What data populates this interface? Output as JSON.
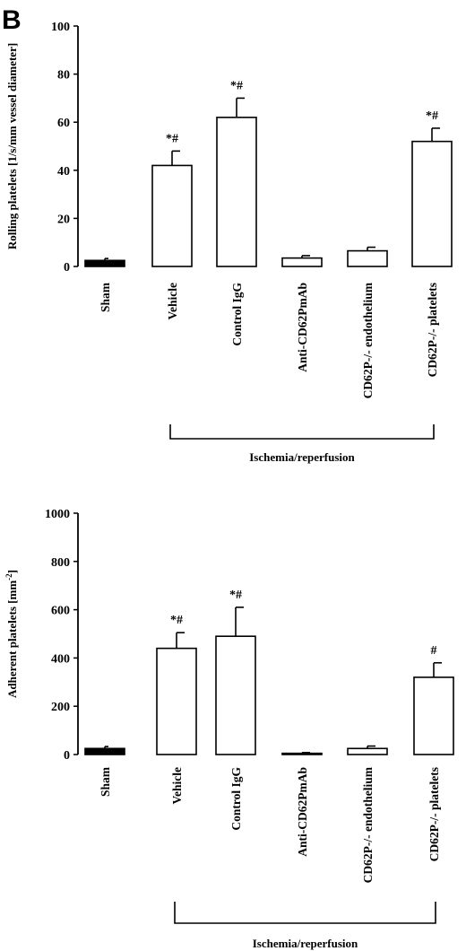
{
  "figure": {
    "panel_label": "B"
  },
  "chart_data": [
    {
      "type": "bar",
      "ylabel": "Rolling platelets [1/s/mm vessel diameter]",
      "ylim": [
        0,
        100
      ],
      "yticks": [
        0,
        20,
        40,
        60,
        80,
        100
      ],
      "categories": [
        "Sham",
        "Vehicle",
        "Control IgG",
        "Anti-CD62PmAb",
        "CD62P-/- endothelium",
        "CD62P-/- platelets"
      ],
      "values": [
        2.5,
        42,
        62,
        3.5,
        6.5,
        52
      ],
      "errors": [
        0.8,
        6,
        8,
        1,
        1.5,
        5.5
      ],
      "significance": [
        "",
        "*#",
        "*#",
        "",
        "",
        "*#"
      ],
      "bar_fills": [
        "#000000",
        "#ffffff",
        "#ffffff",
        "#ffffff",
        "#ffffff",
        "#ffffff"
      ],
      "group_bracket": {
        "label": "Ischemia/reperfusion",
        "from": "Vehicle",
        "to": "CD62P-/- platelets"
      }
    },
    {
      "type": "bar",
      "ylabel": "Adherent platelets [mm",
      "ylabel_superscript": "-2",
      "ylabel_suffix": "]",
      "ylim": [
        0,
        1000
      ],
      "yticks": [
        0,
        200,
        400,
        600,
        800,
        1000
      ],
      "categories": [
        "Sham",
        "Vehicle",
        "Control IgG",
        "Anti-CD62PmAb",
        "CD62P-/- endothelium",
        "CD62P-/- platelets"
      ],
      "values": [
        25,
        440,
        490,
        5,
        25,
        320
      ],
      "errors": [
        8,
        65,
        120,
        3,
        10,
        60
      ],
      "significance": [
        "",
        "*#",
        "*#",
        "",
        "",
        "#"
      ],
      "bar_fills": [
        "#000000",
        "#ffffff",
        "#ffffff",
        "#ffffff",
        "#ffffff",
        "#ffffff"
      ],
      "group_bracket": {
        "label": "Ischemia/reperfusion",
        "from": "Vehicle",
        "to": "CD62P-/- platelets"
      }
    }
  ]
}
